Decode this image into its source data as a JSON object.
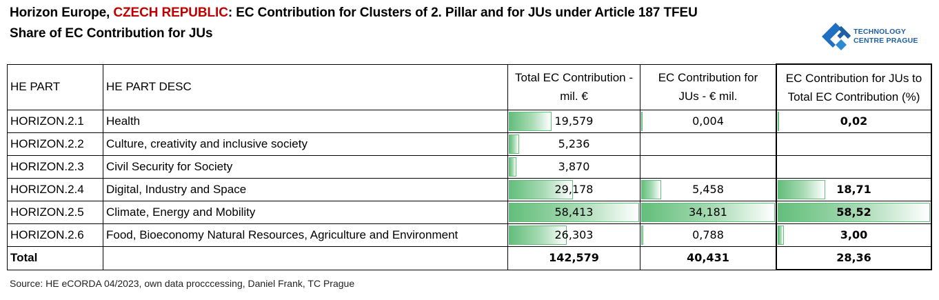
{
  "title": {
    "line1_prefix": "Horizon Europe, ",
    "line1_country": "CZECH REPUBLIC",
    "line1_suffix": ": EC Contribution for Clusters of 2. Pillar and for JUs under Article 187 TFEU",
    "line2": "Share of EC Contribution for JUs"
  },
  "logo": {
    "line1": "TECHNOLOGY",
    "line2": "CENTRE PRAGUE",
    "color": "#1f5fa6"
  },
  "table": {
    "headers": {
      "he_part": "HE PART",
      "he_part_desc": "HE PART DESC",
      "total_ec": "Total EC Contribution - mil. €",
      "total_ec_l1": "Total EC Contribution -",
      "total_ec_l2": "mil. €",
      "ec_jus_l1": "EC Contribution for",
      "ec_jus_l2": "JUs - € mil.",
      "share_l1": "EC Contribution for JUs to",
      "share_l2": "Total EC Contribution (%)"
    },
    "rows": [
      {
        "part": "HORIZON.2.1",
        "desc": "Health",
        "total_ec": "19,579",
        "total_ec_num": 19.579,
        "ec_jus": "0,004",
        "ec_jus_num": 0.004,
        "share": "0,02",
        "share_num": 0.02
      },
      {
        "part": "HORIZON.2.2",
        "desc": "Culture, creativity and inclusive society",
        "total_ec": "5,236",
        "total_ec_num": 5.236,
        "ec_jus": "",
        "ec_jus_num": null,
        "share": "",
        "share_num": null
      },
      {
        "part": "HORIZON.2.3",
        "desc": "Civil Security for Society",
        "total_ec": "3,870",
        "total_ec_num": 3.87,
        "ec_jus": "",
        "ec_jus_num": null,
        "share": "",
        "share_num": null
      },
      {
        "part": "HORIZON.2.4",
        "desc": "Digital, Industry and Space",
        "total_ec": "29,178",
        "total_ec_num": 29.178,
        "ec_jus": "5,458",
        "ec_jus_num": 5.458,
        "share": "18,71",
        "share_num": 18.71
      },
      {
        "part": "HORIZON.2.5",
        "desc": "Climate, Energy and Mobility",
        "total_ec": "58,413",
        "total_ec_num": 58.413,
        "ec_jus": "34,181",
        "ec_jus_num": 34.181,
        "share": "58,52",
        "share_num": 58.52
      },
      {
        "part": "HORIZON.2.6",
        "desc": "Food, Bioeconomy Natural Resources, Agriculture and Environment",
        "total_ec": "26,303",
        "total_ec_num": 26.303,
        "ec_jus": "0,788",
        "ec_jus_num": 0.788,
        "share": "3,00",
        "share_num": 3.0
      }
    ],
    "total": {
      "label": "Total",
      "total_ec": "142,579",
      "ec_jus": "40,431",
      "share": "28,36"
    },
    "bar_color": "#63be7b"
  },
  "source": "Source: HE eCORDA 04/2023, own data procccessing, Daniel Frank, TC Prague"
}
